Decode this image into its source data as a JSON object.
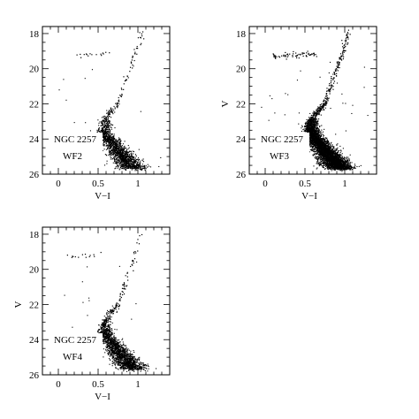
{
  "chart_data": [
    {
      "type": "scatter",
      "name": "WF2",
      "labels": [
        "NGC 2257",
        "WF2"
      ],
      "xlabel": "V−I",
      "ylabel": "",
      "xlim": [
        -0.2,
        1.4
      ],
      "ylim": [
        26,
        17.6
      ],
      "y_inverted": true,
      "xticks": [
        "0",
        "0.5",
        "1"
      ],
      "xtick_values": [
        0,
        0.5,
        1
      ],
      "yticks": [
        "18",
        "20",
        "22",
        "24",
        "26"
      ],
      "ytick_values": [
        18,
        20,
        22,
        24,
        26
      ],
      "grid": false,
      "density": 1700,
      "hb_count": 16,
      "rgb_count": 55,
      "field_count": 14
    },
    {
      "type": "scatter",
      "name": "WF3",
      "labels": [
        "NGC 2257",
        "WF3"
      ],
      "xlabel": "V−I",
      "ylabel": "V",
      "xlim": [
        -0.2,
        1.4
      ],
      "ylim": [
        26,
        17.6
      ],
      "y_inverted": true,
      "xticks": [
        "0",
        "0.5",
        "1"
      ],
      "xtick_values": [
        0,
        0.5,
        1
      ],
      "yticks": [
        "18",
        "20",
        "22",
        "24",
        "26"
      ],
      "ytick_values": [
        18,
        20,
        22,
        24,
        26
      ],
      "grid": false,
      "density": 4200,
      "hb_count": 70,
      "rgb_count": 170,
      "field_count": 35
    },
    {
      "type": "scatter",
      "name": "WF4",
      "labels": [
        "NGC 2257",
        "WF4"
      ],
      "xlabel": "V−I",
      "ylabel": "V",
      "xlim": [
        -0.2,
        1.4
      ],
      "ylim": [
        26,
        17.6
      ],
      "y_inverted": true,
      "xticks": [
        "0",
        "0.5",
        "1"
      ],
      "xtick_values": [
        0,
        0.5,
        1
      ],
      "yticks": [
        "18",
        "20",
        "22",
        "24",
        "26"
      ],
      "ytick_values": [
        18,
        20,
        22,
        24,
        26
      ],
      "grid": false,
      "density": 1800,
      "hb_count": 14,
      "rgb_count": 60,
      "field_count": 16
    }
  ],
  "colors": {
    "points": "#000000",
    "background": "#ffffff"
  }
}
